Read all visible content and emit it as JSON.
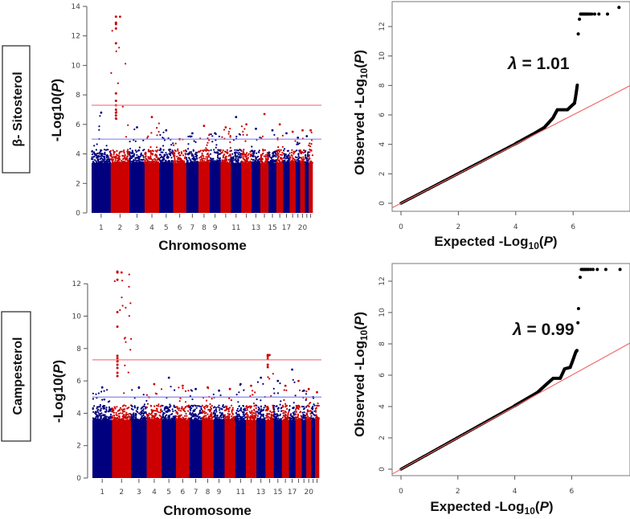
{
  "colors": {
    "blue": "#00007f",
    "red": "#cc0000",
    "genome_wide_line": "#f08080",
    "suggestive_line": "#8888ee",
    "qq_points": "#000000",
    "qq_line": "#f06060"
  },
  "chart_data": [
    {
      "type": "scatter",
      "subtype": "manhattan",
      "trait": "β- Sitosterol",
      "xlabel": "Chromosome",
      "ylabel": {
        "prefix": "-Log10(",
        "var": "P",
        "suffix": ")"
      },
      "ylim": [
        0,
        14
      ],
      "yticks": [
        "0",
        "2",
        "4",
        "6",
        "8",
        "10",
        "12",
        "14"
      ],
      "xtick_labels": [
        "1",
        "2",
        "3",
        "4",
        "5",
        "6",
        "7",
        "8",
        "9",
        "11",
        "13",
        "15",
        "17",
        "20"
      ],
      "xtick_chromosomes": [
        1,
        2,
        3,
        4,
        5,
        6,
        7,
        8,
        9,
        11,
        13,
        15,
        17,
        20
      ],
      "chromosome_count": 22,
      "chromosome_relative_lengths": [
        249,
        243,
        198,
        191,
        181,
        171,
        159,
        146,
        141,
        136,
        135,
        133,
        115,
        107,
        102,
        90,
        83,
        78,
        59,
        63,
        48,
        51
      ],
      "genome_wide_threshold": 7.3,
      "suggestive_threshold": 5.0,
      "dense_level": 3.8,
      "chromosome_peaks": [
        6.8,
        13.3,
        5.8,
        6.5,
        5.6,
        5.0,
        5.4,
        5.9,
        5.4,
        5.8,
        6.5,
        6.0,
        5.7,
        6.7,
        5.6,
        6.0,
        5.4,
        5.5,
        5.1,
        5.6,
        5.2,
        5.6
      ],
      "top_hits": [
        {
          "chromosome": 2,
          "values": [
            13.3,
            12.9,
            12.8,
            12.5,
            11.5,
            8.1,
            7.6,
            7.3,
            7.0,
            6.8,
            6.6,
            6.4
          ]
        }
      ]
    },
    {
      "type": "scatter",
      "subtype": "qq",
      "xlabel": {
        "prefix": "Expected -Log",
        "sub": "10",
        "open": "(",
        "var": "P",
        "close": ")"
      },
      "ylabel": {
        "prefix": "Observed -Log",
        "sub": "10",
        "open": "(",
        "var": "P",
        "close": ")"
      },
      "annotation": {
        "symbol": "λ",
        "text": " = 1.01"
      },
      "lambda": 1.01,
      "xticks": [
        "0",
        "2",
        "4",
        "6"
      ],
      "yticks": [
        "0",
        "2",
        "4",
        "6",
        "8",
        "10",
        "12"
      ],
      "curve": [
        [
          0,
          0
        ],
        [
          4,
          4.05
        ],
        [
          4.7,
          4.8
        ],
        [
          5.0,
          5.15
        ],
        [
          5.3,
          5.8
        ],
        [
          5.45,
          6.35
        ],
        [
          5.8,
          6.35
        ],
        [
          6.05,
          6.8
        ],
        [
          6.1,
          7.4
        ],
        [
          6.15,
          8.1
        ]
      ],
      "tail_points": [
        [
          6.18,
          11.5
        ],
        [
          6.22,
          12.5
        ],
        [
          6.26,
          12.85
        ],
        [
          6.3,
          12.85
        ],
        [
          6.34,
          12.85
        ],
        [
          6.38,
          12.85
        ],
        [
          6.42,
          12.85
        ],
        [
          6.47,
          12.85
        ],
        [
          6.52,
          12.85
        ],
        [
          6.58,
          12.85
        ],
        [
          6.65,
          12.85
        ],
        [
          6.75,
          12.85
        ],
        [
          6.9,
          12.85
        ],
        [
          7.2,
          12.85
        ],
        [
          7.6,
          13.3
        ]
      ]
    },
    {
      "type": "scatter",
      "subtype": "manhattan",
      "trait": "Campesterol",
      "xlabel": "Chromosome",
      "ylabel": {
        "prefix": "-Log10(",
        "var": "P",
        "suffix": ")"
      },
      "ylim": [
        0,
        12
      ],
      "yticks": [
        "0",
        "2",
        "4",
        "6",
        "8",
        "10",
        "12"
      ],
      "xtick_labels": [
        "1",
        "2",
        "3",
        "4",
        "5",
        "6",
        "7",
        "8",
        "9",
        "11",
        "13",
        "15",
        "17",
        "20"
      ],
      "xtick_chromosomes": [
        1,
        2,
        3,
        4,
        5,
        6,
        7,
        8,
        9,
        11,
        13,
        15,
        17,
        20
      ],
      "chromosome_count": 22,
      "chromosome_relative_lengths": [
        249,
        243,
        198,
        191,
        181,
        171,
        159,
        146,
        141,
        136,
        135,
        133,
        115,
        107,
        102,
        90,
        83,
        78,
        59,
        63,
        48,
        51
      ],
      "genome_wide_threshold": 7.3,
      "suggestive_threshold": 5.0,
      "dense_level": 4.0,
      "chromosome_peaks": [
        5.6,
        12.7,
        5.6,
        5.8,
        6.2,
        5.7,
        5.5,
        5.6,
        5.4,
        5.5,
        5.8,
        5.7,
        6.2,
        7.6,
        6.0,
        5.7,
        6.7,
        6.0,
        5.4,
        5.5,
        5.0,
        5.3
      ],
      "top_hits": [
        {
          "chromosome": 2,
          "values": [
            12.75,
            12.7,
            12.25,
            10.25,
            9.35,
            7.55,
            7.4,
            7.2,
            7.0,
            6.8,
            6.5,
            6.3
          ]
        },
        {
          "chromosome": 14,
          "values": [
            7.6,
            7.5,
            7.35,
            7.0,
            6.85
          ]
        }
      ]
    },
    {
      "type": "scatter",
      "subtype": "qq",
      "xlabel": {
        "prefix": "Expected -Log",
        "sub": "10",
        "open": "(",
        "var": "P",
        "close": ")"
      },
      "ylabel": {
        "prefix": "Observed -Log",
        "sub": "10",
        "open": "(",
        "var": "P",
        "close": ")"
      },
      "annotation": {
        "symbol": "λ",
        "text": " = 0.99"
      },
      "lambda": 0.99,
      "xticks": [
        "0",
        "2",
        "4",
        "6"
      ],
      "yticks": [
        "0",
        "2",
        "4",
        "6",
        "8",
        "10",
        "12"
      ],
      "curve": [
        [
          0,
          0
        ],
        [
          4,
          4.05
        ],
        [
          4.8,
          4.9
        ],
        [
          5.1,
          5.4
        ],
        [
          5.35,
          5.8
        ],
        [
          5.6,
          5.8
        ],
        [
          5.75,
          6.4
        ],
        [
          5.95,
          6.5
        ],
        [
          6.05,
          7.0
        ],
        [
          6.15,
          7.5
        ],
        [
          6.2,
          7.6
        ]
      ],
      "tail_points": [
        [
          6.22,
          9.35
        ],
        [
          6.24,
          10.25
        ],
        [
          6.3,
          12.25
        ],
        [
          6.34,
          12.75
        ],
        [
          6.38,
          12.75
        ],
        [
          6.42,
          12.75
        ],
        [
          6.46,
          12.75
        ],
        [
          6.5,
          12.75
        ],
        [
          6.55,
          12.75
        ],
        [
          6.6,
          12.75
        ],
        [
          6.67,
          12.75
        ],
        [
          6.75,
          12.75
        ],
        [
          6.9,
          12.75
        ],
        [
          7.2,
          12.75
        ],
        [
          7.7,
          12.75
        ]
      ]
    }
  ]
}
